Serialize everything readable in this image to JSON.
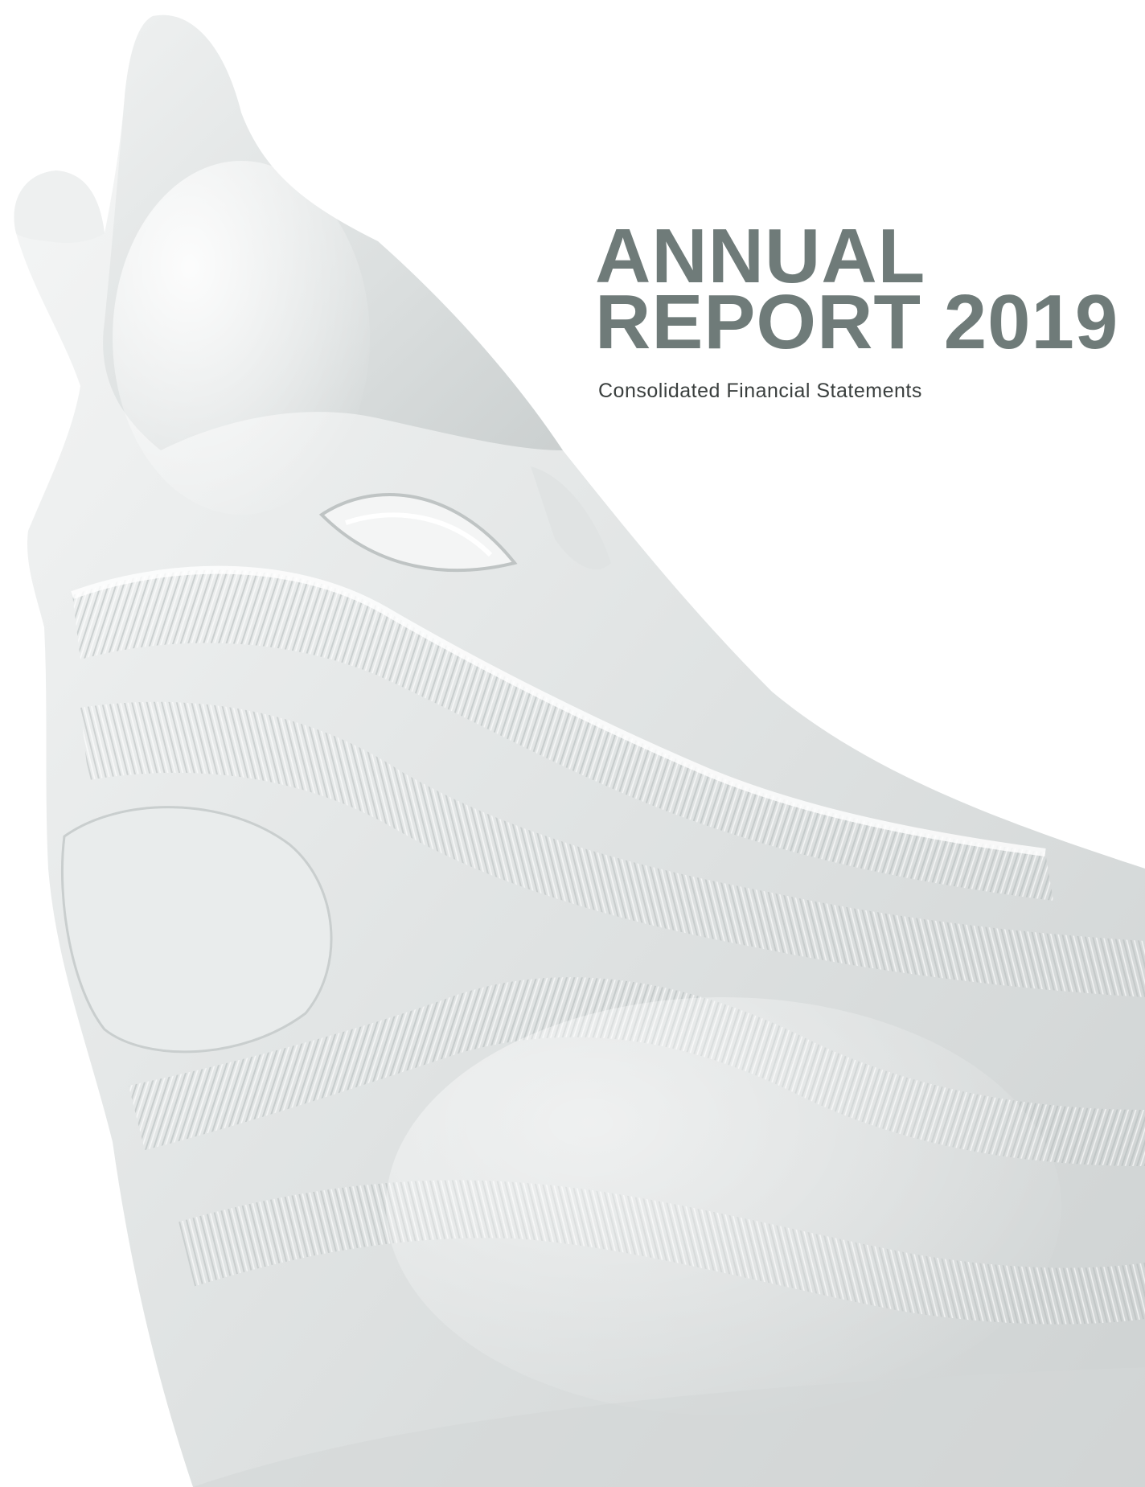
{
  "cover": {
    "title_line_1": "ANNUAL",
    "title_line_2": "REPORT 2019",
    "subtitle": "Consolidated Financial Statements"
  },
  "image": {
    "subject": "frosted crystal howling wolf sculpture",
    "palette": {
      "background": "#ffffff",
      "crystal_light": "#f3f4f4",
      "crystal_mid": "#dcdfdf",
      "crystal_shadow": "#b9bebe",
      "title_color": "#6f7b79",
      "subtitle_color": "#3a3f3e"
    }
  }
}
